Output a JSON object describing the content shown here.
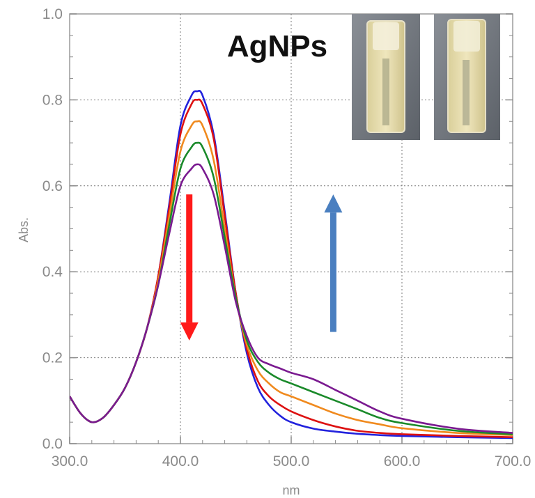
{
  "chart_data": {
    "type": "line",
    "title": "AgNPs",
    "xlabel": "nm",
    "ylabel": "Abs.",
    "xlim": [
      300,
      700
    ],
    "ylim": [
      0,
      1.0
    ],
    "x_ticks": [
      "300.0",
      "400.0",
      "500.0",
      "600.0",
      "700.0"
    ],
    "y_ticks": [
      "0.0",
      "0.2",
      "0.4",
      "0.6",
      "0.8",
      "1.0"
    ],
    "grid": true,
    "legend": "none",
    "x": [
      300,
      310,
      320,
      330,
      340,
      350,
      360,
      370,
      380,
      390,
      400,
      410,
      415,
      420,
      430,
      440,
      450,
      460,
      470,
      480,
      490,
      500,
      520,
      540,
      560,
      580,
      600,
      650,
      700
    ],
    "series": [
      {
        "color": "#2222dd",
        "values": [
          0.11,
          0.07,
          0.05,
          0.06,
          0.09,
          0.13,
          0.19,
          0.27,
          0.39,
          0.56,
          0.74,
          0.81,
          0.82,
          0.81,
          0.72,
          0.54,
          0.35,
          0.21,
          0.13,
          0.09,
          0.065,
          0.05,
          0.035,
          0.028,
          0.023,
          0.02,
          0.018,
          0.015,
          0.013
        ]
      },
      {
        "color": "#dd1111",
        "values": [
          0.11,
          0.07,
          0.05,
          0.06,
          0.09,
          0.13,
          0.19,
          0.27,
          0.39,
          0.55,
          0.72,
          0.79,
          0.8,
          0.79,
          0.71,
          0.53,
          0.35,
          0.22,
          0.145,
          0.11,
          0.09,
          0.075,
          0.055,
          0.04,
          0.03,
          0.025,
          0.022,
          0.018,
          0.015
        ]
      },
      {
        "color": "#f08a1e",
        "values": [
          0.11,
          0.07,
          0.05,
          0.06,
          0.09,
          0.13,
          0.19,
          0.27,
          0.38,
          0.53,
          0.68,
          0.74,
          0.75,
          0.74,
          0.66,
          0.5,
          0.34,
          0.23,
          0.17,
          0.14,
          0.12,
          0.11,
          0.09,
          0.07,
          0.055,
          0.045,
          0.036,
          0.025,
          0.02
        ]
      },
      {
        "color": "#1a8a2a",
        "values": [
          0.11,
          0.07,
          0.05,
          0.06,
          0.09,
          0.13,
          0.19,
          0.27,
          0.37,
          0.51,
          0.64,
          0.69,
          0.7,
          0.69,
          0.62,
          0.48,
          0.34,
          0.24,
          0.19,
          0.165,
          0.15,
          0.14,
          0.12,
          0.1,
          0.08,
          0.06,
          0.048,
          0.03,
          0.022
        ]
      },
      {
        "color": "#7a1a90",
        "values": [
          0.11,
          0.07,
          0.05,
          0.06,
          0.09,
          0.13,
          0.19,
          0.27,
          0.37,
          0.49,
          0.6,
          0.64,
          0.65,
          0.64,
          0.58,
          0.46,
          0.33,
          0.25,
          0.2,
          0.185,
          0.175,
          0.165,
          0.15,
          0.125,
          0.1,
          0.075,
          0.058,
          0.035,
          0.025
        ]
      }
    ],
    "annotations": [
      {
        "type": "arrow",
        "color": "#ff1a1a",
        "direction": "down",
        "x": 408,
        "y_from": 0.58,
        "y_to": 0.24
      },
      {
        "type": "arrow",
        "color": "#4a7fc0",
        "direction": "up",
        "x": 538,
        "y_from": 0.26,
        "y_to": 0.58
      }
    ]
  },
  "inset_images": [
    "cuvette-photo-before",
    "cuvette-photo-after"
  ]
}
